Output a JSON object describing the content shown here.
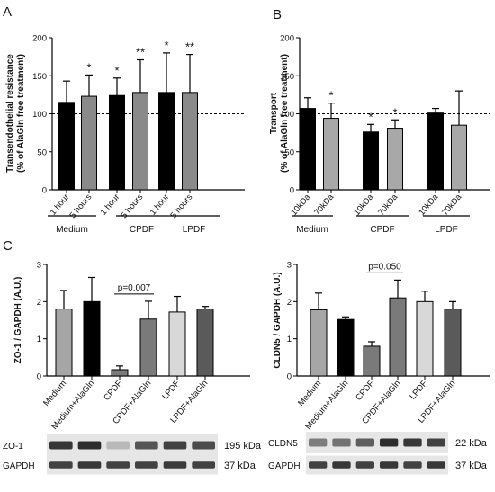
{
  "chart_data": [
    {
      "panel": "A",
      "type": "bar",
      "ylabel_lines": [
        "Transendothelial resistance",
        "(% of AlaGln free treatment)"
      ],
      "ylim": [
        0,
        200
      ],
      "yticks": [
        0,
        50,
        100,
        150,
        200
      ],
      "reference_line": 100,
      "categories": [
        "1 hour",
        "5 hours",
        "1 hour",
        "5 hours",
        "1 hour",
        "5 hours"
      ],
      "values": [
        115,
        123,
        124,
        128,
        128,
        128
      ],
      "errors": [
        28,
        28,
        23,
        43,
        52,
        50
      ],
      "annotations": [
        "",
        "*",
        "*",
        "**",
        "*",
        "**"
      ],
      "colors": [
        "#000000",
        "#8a8a8a",
        "#000000",
        "#8a8a8a",
        "#000000",
        "#8a8a8a"
      ],
      "groups": [
        "Medium",
        "CPDF",
        "LPDF"
      ]
    },
    {
      "panel": "B",
      "type": "bar",
      "ylabel_lines": [
        "Transport",
        "(% of AlaGln free treatment)"
      ],
      "ylim": [
        0,
        200
      ],
      "yticks": [
        0,
        50,
        100,
        150,
        200
      ],
      "reference_line": 100,
      "categories": [
        "10kDa",
        "70kDa",
        "10kDa",
        "70kDa",
        "10kDa",
        "70kDa"
      ],
      "values": [
        107,
        94,
        76,
        81,
        101,
        85
      ],
      "errors": [
        14,
        20,
        10,
        11,
        6,
        45
      ],
      "annotations": [
        "",
        "*",
        "*",
        "*",
        "",
        ""
      ],
      "colors": [
        "#000000",
        "#a8a8a8",
        "#000000",
        "#a8a8a8",
        "#000000",
        "#a8a8a8"
      ],
      "groups": [
        "Medium",
        "CPDF",
        "LPDF"
      ]
    },
    {
      "panel": "C-left",
      "type": "bar",
      "ylabel": "ZO-1 / GAPDH (A.U.)",
      "ylim": [
        0,
        3
      ],
      "yticks": [
        0,
        1,
        2,
        3
      ],
      "categories": [
        "Medium",
        "Medium+AlaGln",
        "CPDF",
        "CPDF+AlaGln",
        "LPDF",
        "LPDF+AlaGln"
      ],
      "values": [
        1.8,
        2.0,
        0.17,
        1.53,
        1.72,
        1.8
      ],
      "errors": [
        0.5,
        0.65,
        0.1,
        0.48,
        0.42,
        0.07
      ],
      "colors": [
        "#a6a6a6",
        "#000000",
        "#7a7a7a",
        "#7a7a7a",
        "#d8d8d8",
        "#5a5a5a"
      ],
      "bracket": {
        "from": 2,
        "to": 3,
        "label": "p=0.007"
      },
      "blot": {
        "labels": [
          "ZO-1",
          "GAPDH"
        ],
        "sizes": [
          "195 kDa",
          "37 kDa"
        ]
      }
    },
    {
      "panel": "C-right",
      "type": "bar",
      "ylabel": "CLDN5 / GAPDH (A.U.)",
      "ylim": [
        0,
        3
      ],
      "yticks": [
        0,
        1,
        2,
        3
      ],
      "categories": [
        "Medium",
        "Medium+AlaGln",
        "CPDF",
        "CPDF+AlaGln",
        "LPDF",
        "LPDF+AlaGln"
      ],
      "values": [
        1.78,
        1.52,
        0.8,
        2.1,
        2.0,
        1.8
      ],
      "errors": [
        0.45,
        0.07,
        0.12,
        0.48,
        0.28,
        0.2
      ],
      "colors": [
        "#a6a6a6",
        "#000000",
        "#7a7a7a",
        "#7a7a7a",
        "#d8d8d8",
        "#5a5a5a"
      ],
      "bracket": {
        "from": 2,
        "to": 3,
        "label": "p=0.050"
      },
      "blot": {
        "labels": [
          "CLDN5",
          "GAPDH"
        ],
        "sizes": [
          "22 kDa",
          "37 kDa"
        ]
      }
    }
  ]
}
